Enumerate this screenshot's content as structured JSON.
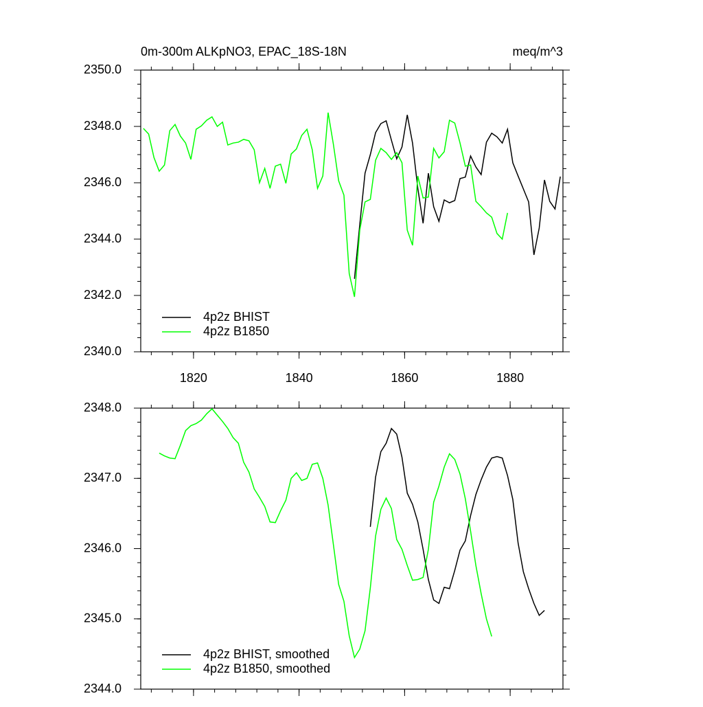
{
  "chart_data": [
    {
      "type": "line",
      "title": "0m-300m ALKpNO3, EPAC_18S-18N",
      "units": "meq/m^3",
      "xlim": [
        1810,
        1890
      ],
      "xticks": [
        1820,
        1840,
        1860,
        1880
      ],
      "xminor": 4,
      "show_xtick_labels": true,
      "ylim": [
        2340,
        2350
      ],
      "yminor": 0.5,
      "yticks": [
        {
          "value": 2340,
          "label": "2340.0"
        },
        {
          "value": 2342,
          "label": "2342.0"
        },
        {
          "value": 2344,
          "label": "2344.0"
        },
        {
          "value": 2346,
          "label": "2346.0"
        },
        {
          "value": 2348,
          "label": "2348.0"
        },
        {
          "value": 2350,
          "label": "2350.0"
        }
      ],
      "legend": "lower-left",
      "series": [
        {
          "name": "4p2z BHIST",
          "color": "#000000",
          "x": [
            1850.5,
            1851.5,
            1852.5,
            1853.5,
            1854.5,
            1855.5,
            1856.5,
            1857.5,
            1858.5,
            1859.5,
            1860.5,
            1861.5,
            1862.5,
            1863.5,
            1864.5,
            1865.5,
            1866.5,
            1867.5,
            1868.5,
            1869.5,
            1870.5,
            1871.5,
            1872.5,
            1873.5,
            1874.5,
            1875.5,
            1876.5,
            1877.5,
            1878.5,
            1879.5,
            1880.5,
            1881.5,
            1882.5,
            1883.5,
            1884.5,
            1885.5,
            1886.5,
            1887.5,
            1888.5,
            1889.5
          ],
          "values": [
            2342.59,
            2344.51,
            2346.34,
            2347.0,
            2347.78,
            2348.1,
            2348.2,
            2347.51,
            2346.85,
            2347.27,
            2348.41,
            2347.41,
            2345.8,
            2344.56,
            2346.34,
            2345.15,
            2344.63,
            2345.39,
            2345.29,
            2345.37,
            2346.15,
            2346.2,
            2346.95,
            2346.56,
            2346.29,
            2347.44,
            2347.76,
            2347.63,
            2347.41,
            2347.9,
            2346.71,
            2346.24,
            2345.78,
            2345.32,
            2343.44,
            2344.39,
            2346.1,
            2345.34,
            2345.07,
            2346.22
          ]
        },
        {
          "name": "4p2z B1850",
          "color": "#00ff00",
          "x": [
            1810.5,
            1811.5,
            1812.5,
            1813.5,
            1814.5,
            1815.5,
            1816.5,
            1817.5,
            1818.5,
            1819.5,
            1820.5,
            1821.5,
            1822.5,
            1823.5,
            1824.5,
            1825.5,
            1826.5,
            1827.5,
            1828.5,
            1829.5,
            1830.5,
            1831.5,
            1832.5,
            1833.5,
            1834.5,
            1835.5,
            1836.5,
            1837.5,
            1838.5,
            1839.5,
            1840.5,
            1841.5,
            1842.5,
            1843.5,
            1844.5,
            1845.5,
            1846.5,
            1847.5,
            1848.5,
            1849.5,
            1850.5,
            1851.5,
            1852.5,
            1853.5,
            1854.5,
            1855.5,
            1856.5,
            1857.5,
            1858.5,
            1859.5,
            1860.5,
            1861.5,
            1862.5,
            1863.5,
            1864.5,
            1865.5,
            1866.5,
            1867.5,
            1868.5,
            1869.5,
            1870.5,
            1871.5,
            1872.5,
            1873.5,
            1874.5,
            1875.5,
            1876.5,
            1877.5,
            1878.5,
            1879.5
          ],
          "values": [
            2347.93,
            2347.73,
            2346.9,
            2346.41,
            2346.63,
            2347.85,
            2348.07,
            2347.66,
            2347.41,
            2346.83,
            2347.9,
            2348.02,
            2348.22,
            2348.34,
            2348.0,
            2348.15,
            2347.34,
            2347.41,
            2347.44,
            2347.54,
            2347.49,
            2347.17,
            2346.0,
            2346.51,
            2345.8,
            2346.59,
            2346.66,
            2345.98,
            2347.02,
            2347.2,
            2347.68,
            2347.9,
            2347.17,
            2345.8,
            2346.24,
            2348.49,
            2347.37,
            2346.07,
            2345.56,
            2342.78,
            2341.95,
            2344.32,
            2345.32,
            2345.41,
            2346.8,
            2347.22,
            2347.07,
            2346.83,
            2347.07,
            2346.71,
            2344.32,
            2343.78,
            2346.24,
            2345.46,
            2345.49,
            2347.22,
            2346.88,
            2347.1,
            2348.22,
            2348.12,
            2347.41,
            2346.59,
            2346.63,
            2345.34,
            2345.15,
            2344.93,
            2344.78,
            2344.2,
            2344.0,
            2344.93
          ]
        }
      ]
    },
    {
      "type": "line",
      "xlim": [
        1810,
        1890
      ],
      "xticks": [
        1820,
        1840,
        1860,
        1880
      ],
      "xminor": 4,
      "show_xtick_labels": false,
      "ylim": [
        2344,
        2348
      ],
      "yminor": 0.2,
      "yticks": [
        {
          "value": 2344,
          "label": "2344.0"
        },
        {
          "value": 2345,
          "label": "2345.0"
        },
        {
          "value": 2346,
          "label": "2346.0"
        },
        {
          "value": 2347,
          "label": "2347.0"
        },
        {
          "value": 2348,
          "label": "2348.0"
        }
      ],
      "legend": "lower-left",
      "series": [
        {
          "name": "4p2z BHIST, smoothed",
          "color": "#000000",
          "x": [
            1853.5,
            1854.5,
            1855.5,
            1856.5,
            1857.5,
            1858.5,
            1859.5,
            1860.5,
            1861.5,
            1862.5,
            1863.5,
            1864.5,
            1865.5,
            1866.5,
            1867.5,
            1868.5,
            1869.5,
            1870.5,
            1871.5,
            1872.5,
            1873.5,
            1874.5,
            1875.5,
            1876.5,
            1877.5,
            1878.5,
            1879.5,
            1880.5,
            1881.5,
            1882.5,
            1883.5,
            1884.5,
            1885.5,
            1886.5
          ],
          "values": [
            2346.31,
            2347.02,
            2347.38,
            2347.5,
            2347.71,
            2347.63,
            2347.3,
            2346.79,
            2346.63,
            2346.38,
            2345.99,
            2345.56,
            2345.27,
            2345.22,
            2345.45,
            2345.43,
            2345.69,
            2345.98,
            2346.11,
            2346.47,
            2346.77,
            2346.98,
            2347.16,
            2347.29,
            2347.31,
            2347.29,
            2347.04,
            2346.7,
            2346.08,
            2345.67,
            2345.43,
            2345.22,
            2345.05,
            2345.12
          ]
        },
        {
          "name": "4p2z B1850, smoothed",
          "color": "#00ff00",
          "x": [
            1813.5,
            1814.5,
            1815.5,
            1816.5,
            1817.5,
            1818.5,
            1819.5,
            1820.5,
            1821.5,
            1822.5,
            1823.5,
            1824.5,
            1825.5,
            1826.5,
            1827.5,
            1828.5,
            1829.5,
            1830.5,
            1831.5,
            1832.5,
            1833.5,
            1834.5,
            1835.5,
            1836.5,
            1837.5,
            1838.5,
            1839.5,
            1840.5,
            1841.5,
            1842.5,
            1843.5,
            1844.5,
            1845.5,
            1846.5,
            1847.5,
            1848.5,
            1849.5,
            1850.5,
            1851.5,
            1852.5,
            1853.5,
            1854.5,
            1855.5,
            1856.5,
            1857.5,
            1858.5,
            1859.5,
            1860.5,
            1861.5,
            1862.5,
            1863.5,
            1864.5,
            1865.5,
            1866.5,
            1867.5,
            1868.5,
            1869.5,
            1870.5,
            1871.5,
            1872.5,
            1873.5,
            1874.5,
            1875.5,
            1876.5
          ],
          "values": [
            2347.36,
            2347.32,
            2347.29,
            2347.28,
            2347.47,
            2347.68,
            2347.75,
            2347.78,
            2347.83,
            2347.92,
            2347.99,
            2347.9,
            2347.81,
            2347.71,
            2347.58,
            2347.5,
            2347.23,
            2347.09,
            2346.85,
            2346.73,
            2346.6,
            2346.38,
            2346.37,
            2346.54,
            2346.69,
            2347.0,
            2347.08,
            2346.97,
            2347.0,
            2347.2,
            2347.22,
            2347.0,
            2346.62,
            2346.06,
            2345.49,
            2345.25,
            2344.76,
            2344.45,
            2344.57,
            2344.83,
            2345.44,
            2346.18,
            2346.56,
            2346.72,
            2346.57,
            2346.13,
            2345.99,
            2345.76,
            2345.55,
            2345.56,
            2345.59,
            2345.99,
            2346.66,
            2346.89,
            2347.16,
            2347.35,
            2347.27,
            2347.06,
            2346.71,
            2346.25,
            2345.76,
            2345.36,
            2345.0,
            2344.75
          ]
        }
      ]
    }
  ]
}
